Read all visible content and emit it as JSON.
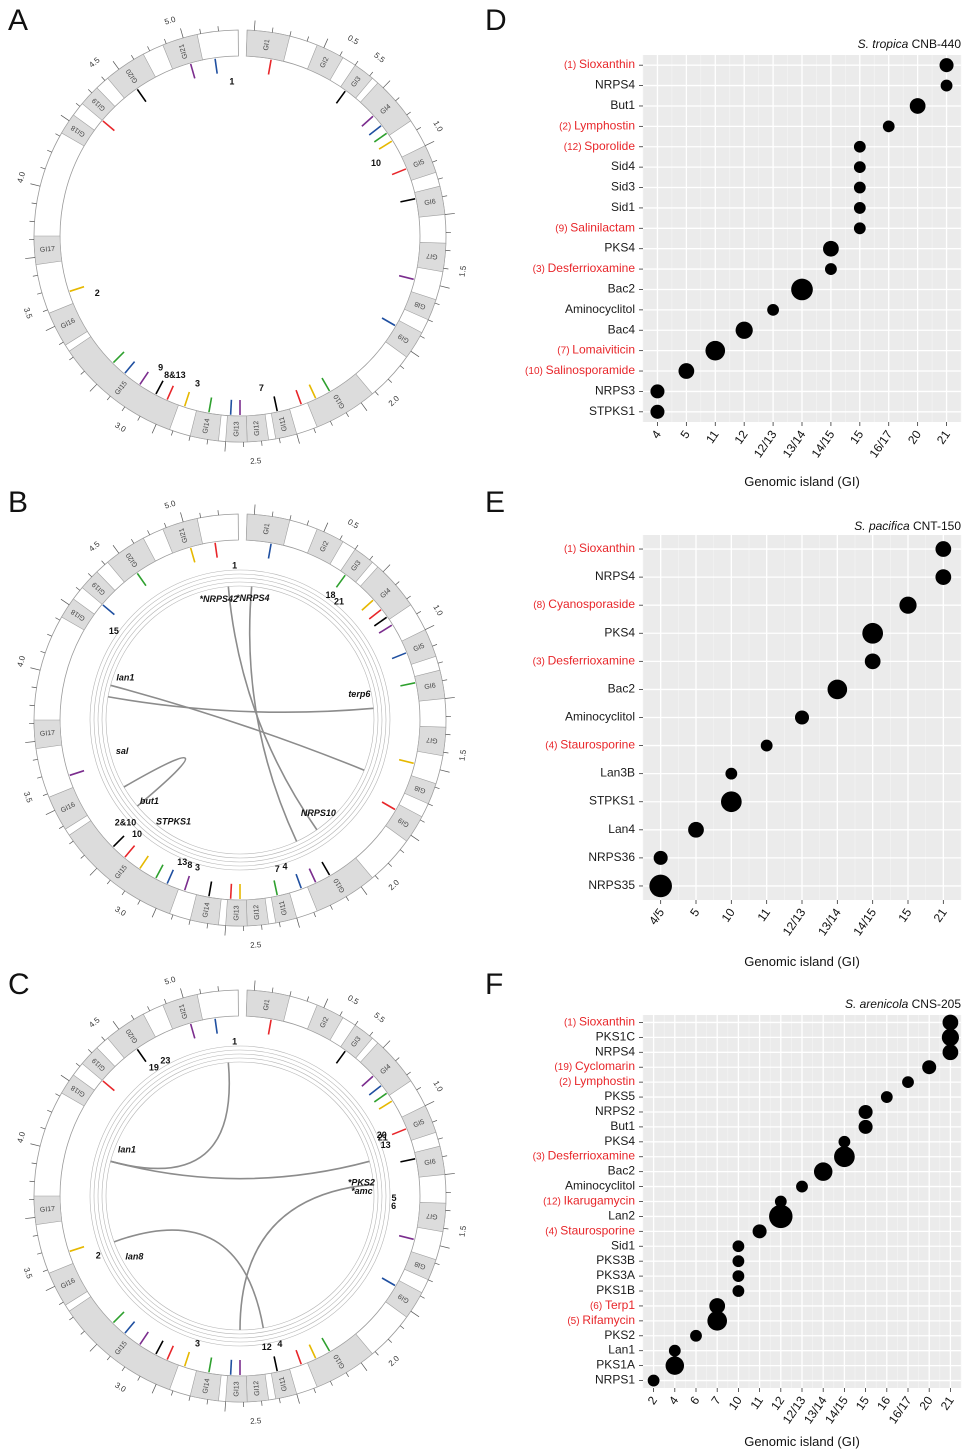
{
  "colors": {
    "highlight": "#e8262a",
    "normal": "#1a1a1a",
    "panel_bg": "#ebebeb",
    "grid": "#ffffff",
    "dot": "#000000",
    "island_fill": "#dcdcdc",
    "link": "#8c8c8c",
    "tick_colors": [
      "#e8262a",
      "#000000",
      "#7b2d8e",
      "#1f4fa0",
      "#2ea02e",
      "#e6b800"
    ]
  },
  "circos_panels": [
    {
      "letter": "A",
      "scale": [
        "0.5",
        "1.0",
        "1.5",
        "2.0",
        "2.5",
        "3.0",
        "3.5",
        "4.0",
        "4.5",
        "5.0",
        "5.5"
      ],
      "islands": [
        "GI1",
        "GI2",
        "GI3",
        "GI4",
        "GI5",
        "GI6",
        "GI7",
        "GI8",
        "GI9",
        "GI10",
        "GI11",
        "GI12",
        "GI13",
        "GI14",
        "GI15",
        "GI16",
        "GI17",
        "GI18",
        "GI19",
        "GI20",
        "GI21"
      ],
      "labels": [
        "1",
        "10",
        "2",
        "9",
        "8&13",
        "3",
        "7"
      ],
      "track_labels": [],
      "links": []
    },
    {
      "letter": "B",
      "scale": [
        "0.5",
        "1.0",
        "1.5",
        "2.0",
        "2.5",
        "3.0",
        "3.5",
        "4.0",
        "4.5",
        "5.0"
      ],
      "islands": [
        "GI1",
        "GI2",
        "GI3",
        "GI4",
        "GI5",
        "GI6",
        "GI7",
        "GI8",
        "GI9",
        "GI10",
        "GI11",
        "GI12",
        "GI13",
        "GI14",
        "GI15",
        "GI16",
        "GI17",
        "GI18",
        "GI19",
        "GI20",
        "GI21"
      ],
      "labels": [
        "1",
        "18",
        "21",
        "15",
        "2&10",
        "10",
        "8",
        "13",
        "3",
        "7",
        "4"
      ],
      "track_labels": [
        "*NRPS42",
        "*NRPS4",
        "lan1",
        "terp6",
        "sal",
        "but1",
        "STPKS1",
        "NRPS10"
      ],
      "links": [
        {
          "from": 355,
          "to": 145
        },
        {
          "from": 280,
          "to": 85
        },
        {
          "from": 285,
          "to": 112
        },
        {
          "from": 5,
          "to": 155
        },
        {
          "from": 230,
          "to": 240
        }
      ]
    },
    {
      "letter": "C",
      "scale": [
        "0.5",
        "1.0",
        "1.5",
        "2.0",
        "2.5",
        "3.0",
        "3.5",
        "4.0",
        "4.5",
        "5.0",
        "5.5"
      ],
      "islands": [
        "GI1",
        "GI2",
        "GI3",
        "GI4",
        "GI5",
        "GI6",
        "GI7",
        "GI8",
        "GI9",
        "GI10",
        "GI11",
        "GI12",
        "GI13",
        "GI14",
        "GI15",
        "GI16",
        "GI17",
        "GI18",
        "GI19",
        "GI20",
        "GI21"
      ],
      "labels": [
        "1",
        "19",
        "23",
        "20",
        "21",
        "13",
        "5",
        "6",
        "2",
        "3",
        "12",
        "4"
      ],
      "track_labels": [
        "lan1",
        "*PKS2",
        "*amc",
        "lan8"
      ],
      "links": [
        {
          "from": 285,
          "to": 355
        },
        {
          "from": 285,
          "to": 75
        },
        {
          "from": 85,
          "to": 180
        },
        {
          "from": 250,
          "to": 170
        }
      ]
    }
  ],
  "chart_data": [
    {
      "letter": "D",
      "type": "scatter",
      "title": "S. tropica CNB-440",
      "xlabel": "Genomic island (GI)",
      "ylabel": "",
      "categories": [
        "4",
        "5",
        "11",
        "12",
        "12/13",
        "13/14",
        "14/15",
        "15",
        "16/17",
        "20",
        "21"
      ],
      "rows": [
        {
          "prefix": "(1)",
          "name": "Sioxanthin",
          "highlight": true,
          "x": "21",
          "size": 2
        },
        {
          "prefix": "",
          "name": "NRPS4",
          "highlight": false,
          "x": "21",
          "size": 1
        },
        {
          "prefix": "",
          "name": "But1",
          "highlight": false,
          "x": "20",
          "size": 3
        },
        {
          "prefix": "(2)",
          "name": "Lymphostin",
          "highlight": true,
          "x": "16/17",
          "size": 1
        },
        {
          "prefix": "(12)",
          "name": "Sporolide",
          "highlight": true,
          "x": "15",
          "size": 1
        },
        {
          "prefix": "",
          "name": "Sid4",
          "highlight": false,
          "x": "15",
          "size": 1
        },
        {
          "prefix": "",
          "name": "Sid3",
          "highlight": false,
          "x": "15",
          "size": 1
        },
        {
          "prefix": "",
          "name": "Sid1",
          "highlight": false,
          "x": "15",
          "size": 1
        },
        {
          "prefix": "(9)",
          "name": "Salinilactam",
          "highlight": true,
          "x": "15",
          "size": 1
        },
        {
          "prefix": "",
          "name": "PKS4",
          "highlight": false,
          "x": "14/15",
          "size": 3
        },
        {
          "prefix": "(3)",
          "name": "Desferrioxamine",
          "highlight": true,
          "x": "14/15",
          "size": 1
        },
        {
          "prefix": "",
          "name": "Bac2",
          "highlight": false,
          "x": "13/14",
          "size": 8
        },
        {
          "prefix": "",
          "name": "Aminocyclitol",
          "highlight": false,
          "x": "12/13",
          "size": 1
        },
        {
          "prefix": "",
          "name": "Bac4",
          "highlight": false,
          "x": "12",
          "size": 4
        },
        {
          "prefix": "(7)",
          "name": "Lomaiviticin",
          "highlight": true,
          "x": "11",
          "size": 6
        },
        {
          "prefix": "(10)",
          "name": "Salinosporamide",
          "highlight": true,
          "x": "5",
          "size": 3
        },
        {
          "prefix": "",
          "name": "NRPS3",
          "highlight": false,
          "x": "4",
          "size": 2
        },
        {
          "prefix": "",
          "name": "STPKS1",
          "highlight": false,
          "x": "4",
          "size": 2
        }
      ]
    },
    {
      "letter": "E",
      "type": "scatter",
      "title": "S. pacifica CNT-150",
      "xlabel": "Genomic island (GI)",
      "ylabel": "",
      "categories": [
        "4/5",
        "5",
        "10",
        "11",
        "12/13",
        "13/14",
        "14/15",
        "15",
        "21"
      ],
      "rows": [
        {
          "prefix": "(1)",
          "name": "Sioxanthin",
          "highlight": true,
          "x": "21",
          "size": 3
        },
        {
          "prefix": "",
          "name": "NRPS4",
          "highlight": false,
          "x": "21",
          "size": 3
        },
        {
          "prefix": "(8)",
          "name": "Cyanosporaside",
          "highlight": true,
          "x": "15",
          "size": 4
        },
        {
          "prefix": "",
          "name": "PKS4",
          "highlight": false,
          "x": "14/15",
          "size": 7
        },
        {
          "prefix": "(3)",
          "name": "Desferrioxamine",
          "highlight": true,
          "x": "14/15",
          "size": 3
        },
        {
          "prefix": "",
          "name": "Bac2",
          "highlight": false,
          "x": "13/14",
          "size": 6
        },
        {
          "prefix": "",
          "name": "Aminocyclitol",
          "highlight": false,
          "x": "12/13",
          "size": 2
        },
        {
          "prefix": "(4)",
          "name": "Staurosporine",
          "highlight": true,
          "x": "11",
          "size": 1
        },
        {
          "prefix": "",
          "name": "Lan3B",
          "highlight": false,
          "x": "10",
          "size": 1
        },
        {
          "prefix": "",
          "name": "STPKS1",
          "highlight": false,
          "x": "10",
          "size": 7
        },
        {
          "prefix": "",
          "name": "Lan4",
          "highlight": false,
          "x": "5",
          "size": 3
        },
        {
          "prefix": "",
          "name": "NRPS36",
          "highlight": false,
          "x": "4/5",
          "size": 2
        },
        {
          "prefix": "",
          "name": "NRPS35",
          "highlight": false,
          "x": "4/5",
          "size": 9
        }
      ]
    },
    {
      "letter": "F",
      "type": "scatter",
      "title": "S. arenicola CNS-205",
      "xlabel": "Genomic island (GI)",
      "ylabel": "",
      "categories": [
        "2",
        "4",
        "6",
        "7",
        "10",
        "11",
        "12",
        "12/13",
        "13/14",
        "14/15",
        "15",
        "16",
        "16/17",
        "20",
        "21"
      ],
      "rows": [
        {
          "prefix": "(1)",
          "name": "Sioxanthin",
          "highlight": true,
          "x": "21",
          "size": 3
        },
        {
          "prefix": "",
          "name": "PKS1C",
          "highlight": false,
          "x": "21",
          "size": 4
        },
        {
          "prefix": "",
          "name": "NRPS4",
          "highlight": false,
          "x": "21",
          "size": 3
        },
        {
          "prefix": "(19)",
          "name": "Cyclomarin",
          "highlight": true,
          "x": "20",
          "size": 2
        },
        {
          "prefix": "(2)",
          "name": "Lymphostin",
          "highlight": true,
          "x": "16/17",
          "size": 1
        },
        {
          "prefix": "",
          "name": "PKS5",
          "highlight": false,
          "x": "16",
          "size": 1
        },
        {
          "prefix": "",
          "name": "NRPS2",
          "highlight": false,
          "x": "15",
          "size": 2
        },
        {
          "prefix": "",
          "name": "But1",
          "highlight": false,
          "x": "15",
          "size": 2
        },
        {
          "prefix": "",
          "name": "PKS4",
          "highlight": false,
          "x": "14/15",
          "size": 1
        },
        {
          "prefix": "(3)",
          "name": "Desferrioxamine",
          "highlight": true,
          "x": "14/15",
          "size": 7
        },
        {
          "prefix": "",
          "name": "Bac2",
          "highlight": false,
          "x": "13/14",
          "size": 5
        },
        {
          "prefix": "",
          "name": "Aminocyclitol",
          "highlight": false,
          "x": "12/13",
          "size": 1
        },
        {
          "prefix": "(12)",
          "name": "Ikarugamycin",
          "highlight": true,
          "x": "12",
          "size": 1
        },
        {
          "prefix": "",
          "name": "Lan2",
          "highlight": false,
          "x": "12",
          "size": 10
        },
        {
          "prefix": "(4)",
          "name": "Staurosporine",
          "highlight": true,
          "x": "11",
          "size": 2
        },
        {
          "prefix": "",
          "name": "Sid1",
          "highlight": false,
          "x": "10",
          "size": 1
        },
        {
          "prefix": "",
          "name": "PKS3B",
          "highlight": false,
          "x": "10",
          "size": 1
        },
        {
          "prefix": "",
          "name": "PKS3A",
          "highlight": false,
          "x": "10",
          "size": 1
        },
        {
          "prefix": "",
          "name": "PKS1B",
          "highlight": false,
          "x": "10",
          "size": 1
        },
        {
          "prefix": "(6)",
          "name": "Terp1",
          "highlight": true,
          "x": "7",
          "size": 3
        },
        {
          "prefix": "(5)",
          "name": "Rifamycin",
          "highlight": true,
          "x": "7",
          "size": 6
        },
        {
          "prefix": "",
          "name": "PKS2",
          "highlight": false,
          "x": "6",
          "size": 1
        },
        {
          "prefix": "",
          "name": "Lan1",
          "highlight": false,
          "x": "4",
          "size": 1
        },
        {
          "prefix": "",
          "name": "PKS1A",
          "highlight": false,
          "x": "4",
          "size": 5
        },
        {
          "prefix": "",
          "name": "NRPS1",
          "highlight": false,
          "x": "2",
          "size": 1
        }
      ]
    }
  ]
}
